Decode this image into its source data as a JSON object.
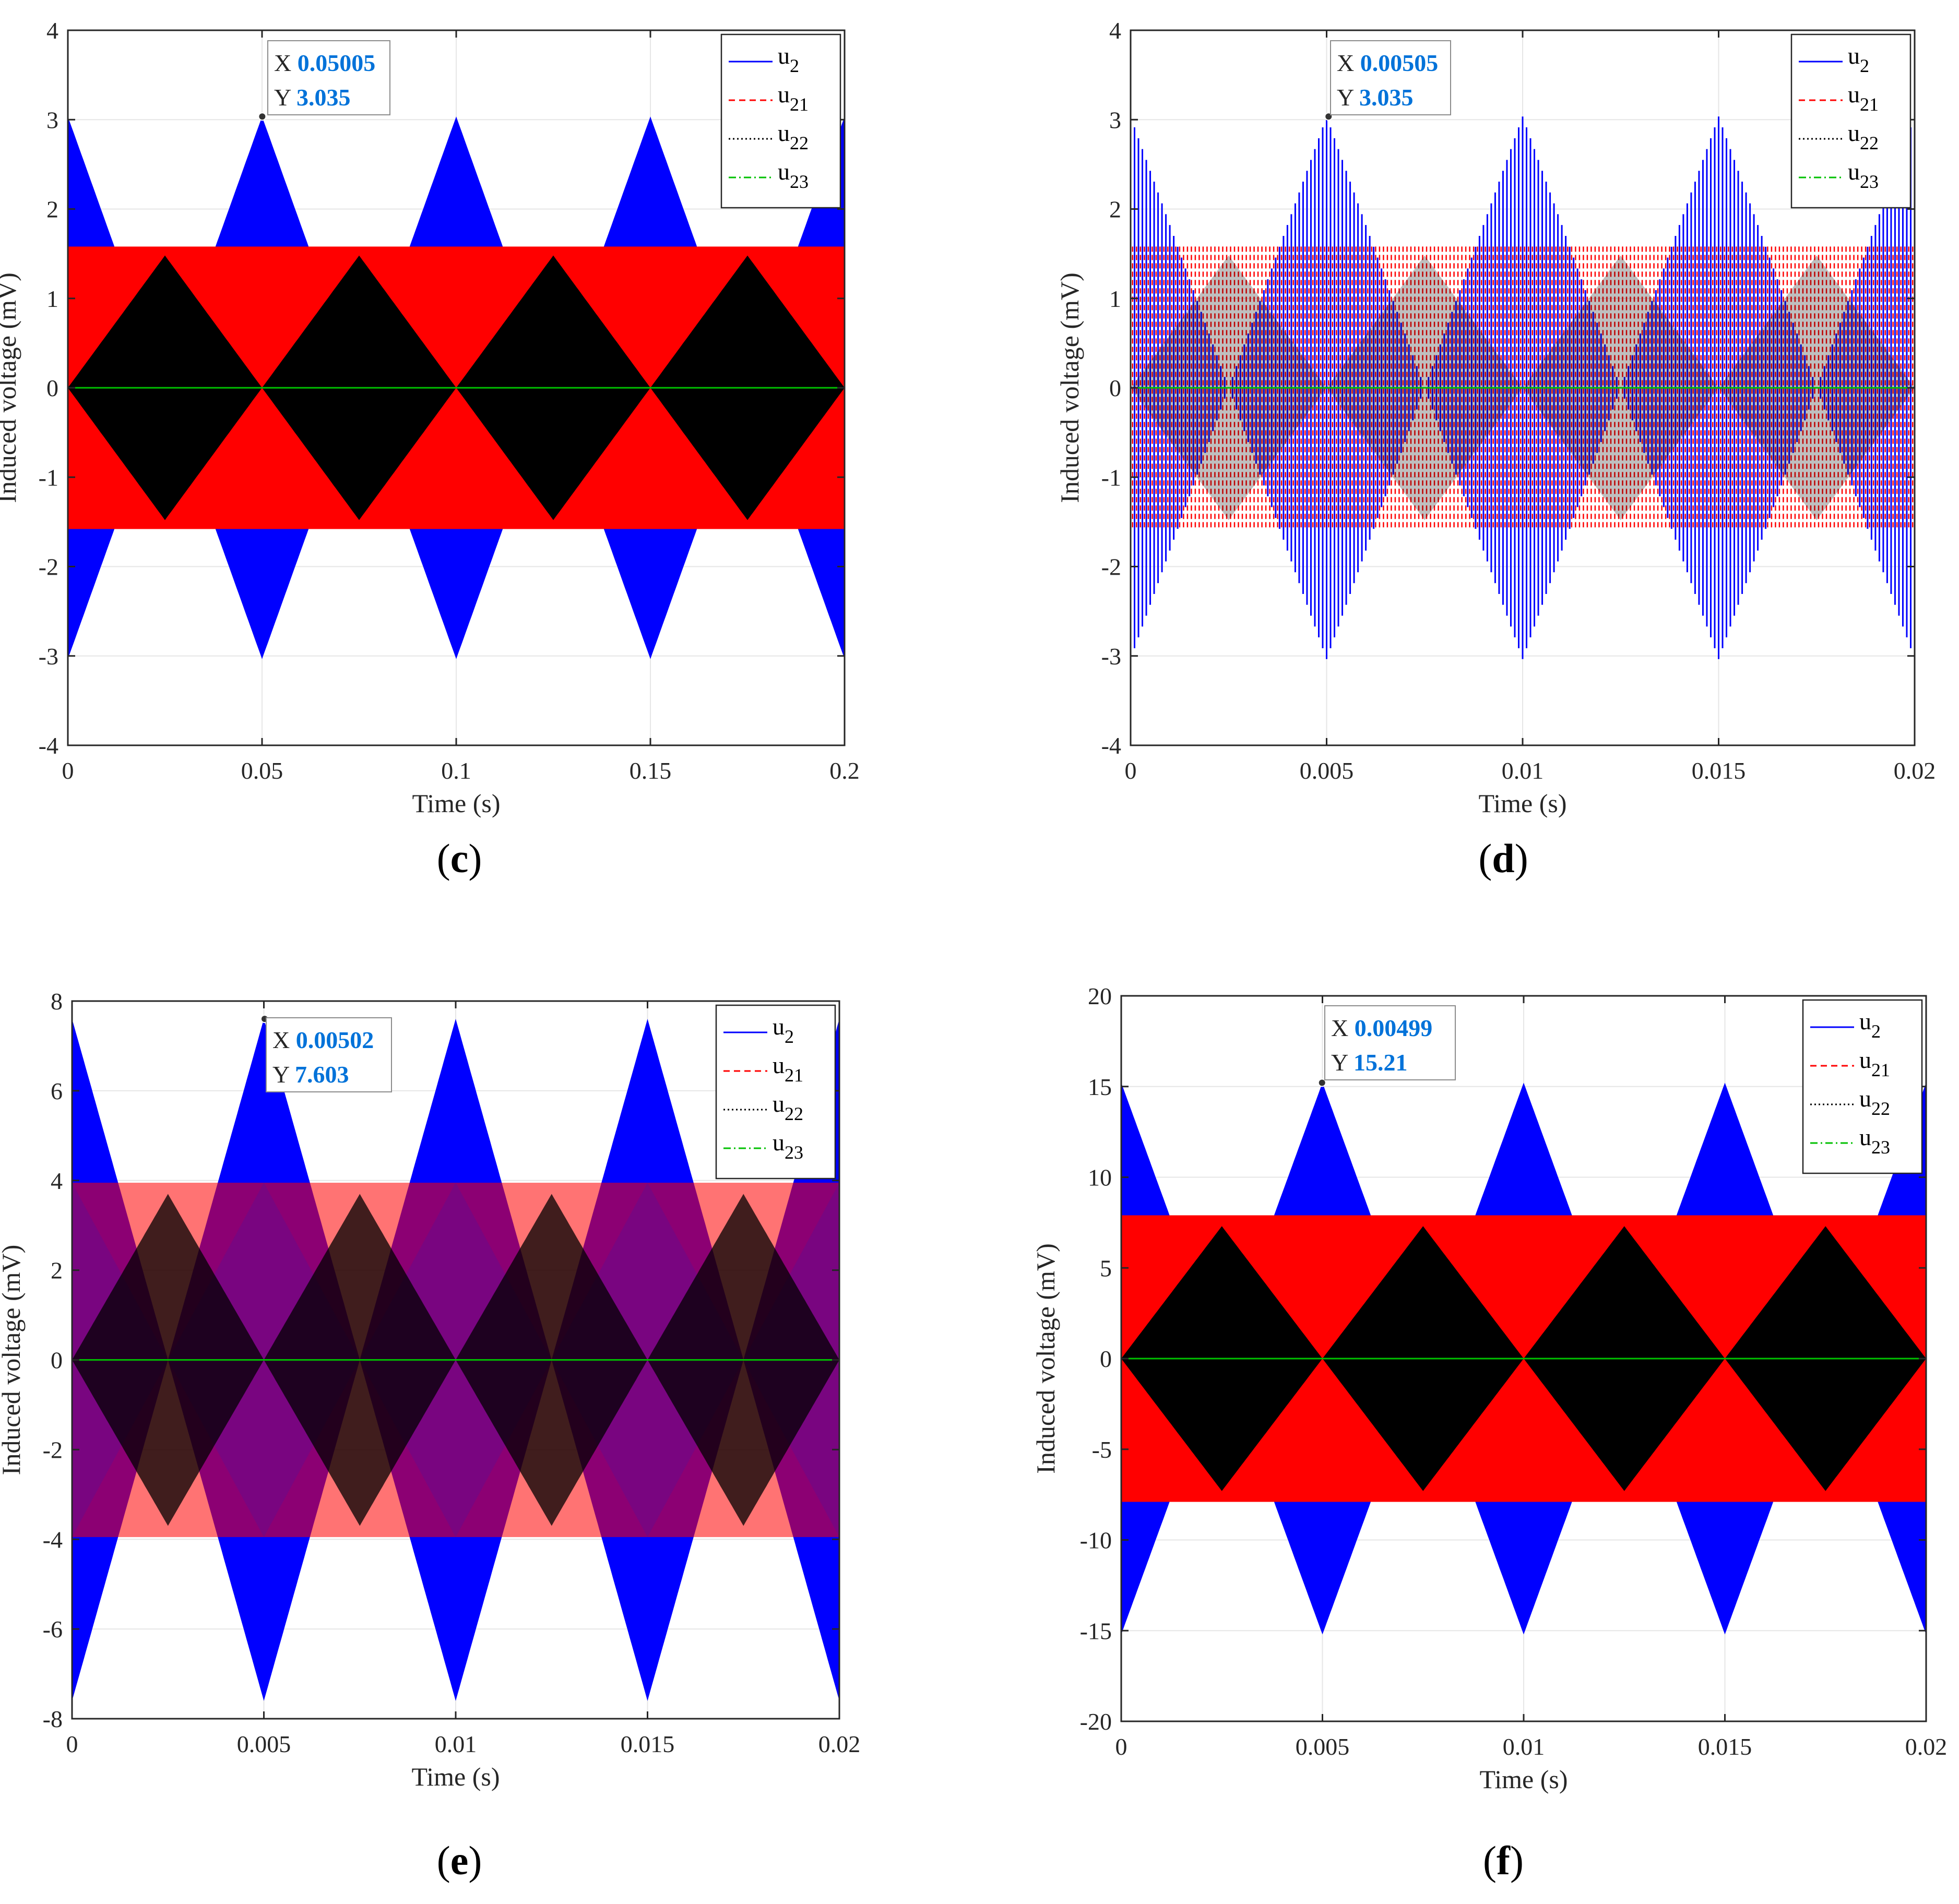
{
  "chart_data": [
    {
      "panel": "c",
      "type": "line",
      "xlabel": "Time (s)",
      "ylabel": "Induced voltage (mV)",
      "xlim": [
        0,
        0.2
      ],
      "ylim": [
        -4,
        4
      ],
      "xticks": [
        0,
        0.05,
        0.1,
        0.15,
        0.2
      ],
      "xtick_labels": [
        "0",
        "0.05",
        "0.1",
        "0.15",
        "0.2"
      ],
      "yticks": [
        -4,
        -3,
        -2,
        -1,
        0,
        1,
        2,
        3,
        4
      ],
      "ytick_labels": [
        "-4",
        "-3",
        "-2",
        "-1",
        "0",
        "1",
        "2",
        "3",
        "4"
      ],
      "grid": true,
      "legend_position": "top-right",
      "render_style": "solid",
      "series": [
        {
          "name": "u2",
          "label_main": "u",
          "label_sub": "2",
          "color": "#0000ff",
          "line_style": "solid",
          "amplitude": 3.035,
          "period": 0.05,
          "phase": 0,
          "shape": "beat"
        },
        {
          "name": "u21",
          "label_main": "u",
          "label_sub": "21",
          "color": "#ff0000",
          "line_style": "dashed",
          "amplitude": 1.58,
          "shape": "band"
        },
        {
          "name": "u22",
          "label_main": "u",
          "label_sub": "22",
          "color": "#000000",
          "line_style": "dotted",
          "amplitude": 1.48,
          "period": 0.05,
          "phase": 0.025,
          "shape": "beat"
        },
        {
          "name": "u23",
          "label_main": "u",
          "label_sub": "23",
          "color": "#00c000",
          "line_style": "dash-dot",
          "amplitude": 0,
          "shape": "flat"
        }
      ],
      "datatip": {
        "x_label": "X",
        "x_value": "0.05005",
        "y_label": "Y",
        "y_value": "3.035",
        "x": 0.05005,
        "y": 3.035
      },
      "caption": {
        "open": "(",
        "letter": "c",
        "close": ")"
      }
    },
    {
      "panel": "d",
      "type": "line",
      "xlabel": "Time (s)",
      "ylabel": "Induced voltage (mV)",
      "xlim": [
        0,
        0.02
      ],
      "ylim": [
        -4,
        4
      ],
      "xticks": [
        0,
        0.005,
        0.01,
        0.015,
        0.02
      ],
      "xtick_labels": [
        "0",
        "0.005",
        "0.01",
        "0.015",
        "0.02"
      ],
      "yticks": [
        -4,
        -3,
        -2,
        -1,
        0,
        1,
        2,
        3,
        4
      ],
      "ytick_labels": [
        "-4",
        "-3",
        "-2",
        "-1",
        "0",
        "1",
        "2",
        "3",
        "4"
      ],
      "grid": true,
      "legend_position": "top-right",
      "render_style": "sparse",
      "series": [
        {
          "name": "u2",
          "label_main": "u",
          "label_sub": "2",
          "color": "#0000ff",
          "line_style": "solid",
          "amplitude": 3.035,
          "period": 0.005,
          "phase": 0,
          "shape": "beat"
        },
        {
          "name": "u21",
          "label_main": "u",
          "label_sub": "21",
          "color": "#ff0000",
          "line_style": "dashed",
          "amplitude": 1.58,
          "shape": "band"
        },
        {
          "name": "u22",
          "label_main": "u",
          "label_sub": "22",
          "color": "#000000",
          "line_style": "dotted",
          "amplitude": 1.48,
          "period": 0.005,
          "phase": 0.0025,
          "shape": "beat"
        },
        {
          "name": "u23",
          "label_main": "u",
          "label_sub": "23",
          "color": "#00c000",
          "line_style": "dash-dot",
          "amplitude": 0,
          "shape": "flat"
        }
      ],
      "datatip": {
        "x_label": "X",
        "x_value": "0.00505",
        "y_label": "Y",
        "y_value": "3.035",
        "x": 0.00505,
        "y": 3.035
      },
      "caption": {
        "open": "(",
        "letter": "d",
        "close": ")"
      }
    },
    {
      "panel": "e",
      "type": "line",
      "xlabel": "Time (s)",
      "ylabel": "Induced voltage (mV)",
      "xlim": [
        0,
        0.02
      ],
      "ylim": [
        -8,
        8
      ],
      "xticks": [
        0,
        0.005,
        0.01,
        0.015,
        0.02
      ],
      "xtick_labels": [
        "0",
        "0.005",
        "0.01",
        "0.015",
        "0.02"
      ],
      "yticks": [
        -8,
        -6,
        -4,
        -2,
        0,
        2,
        4,
        6,
        8
      ],
      "ytick_labels": [
        "-8",
        "-6",
        "-4",
        "-2",
        "0",
        "2",
        "4",
        "6",
        "8"
      ],
      "grid": true,
      "legend_position": "top-right",
      "render_style": "dense",
      "series": [
        {
          "name": "u2",
          "label_main": "u",
          "label_sub": "2",
          "color": "#0000ff",
          "line_style": "solid",
          "amplitude": 7.603,
          "period": 0.005,
          "phase": 0,
          "shape": "beat"
        },
        {
          "name": "u21",
          "label_main": "u",
          "label_sub": "21",
          "color": "#ff0000",
          "line_style": "dashed",
          "amplitude": 3.95,
          "shape": "band"
        },
        {
          "name": "u22",
          "label_main": "u",
          "label_sub": "22",
          "color": "#000000",
          "line_style": "dotted",
          "amplitude": 3.7,
          "period": 0.005,
          "phase": 0.0025,
          "shape": "beat"
        },
        {
          "name": "u23",
          "label_main": "u",
          "label_sub": "23",
          "color": "#00c000",
          "line_style": "dash-dot",
          "amplitude": 0,
          "shape": "flat"
        }
      ],
      "datatip": {
        "x_label": "X",
        "x_value": "0.00502",
        "y_label": "Y",
        "y_value": "7.603",
        "x": 0.00502,
        "y": 7.603
      },
      "caption": {
        "open": "(",
        "letter": "e",
        "close": ")"
      }
    },
    {
      "panel": "f",
      "type": "line",
      "xlabel": "Time (s)",
      "ylabel": "Induced voltage (mV)",
      "xlim": [
        0,
        0.02
      ],
      "ylim": [
        -20,
        20
      ],
      "xticks": [
        0,
        0.005,
        0.01,
        0.015,
        0.02
      ],
      "xtick_labels": [
        "0",
        "0.005",
        "0.01",
        "0.015",
        "0.02"
      ],
      "yticks": [
        -20,
        -15,
        -10,
        -5,
        0,
        5,
        10,
        15,
        20
      ],
      "ytick_labels": [
        "-20",
        "-15",
        "-10",
        "-5",
        "0",
        "5",
        "10",
        "15",
        "20"
      ],
      "grid": true,
      "legend_position": "top-right",
      "render_style": "solid",
      "series": [
        {
          "name": "u2",
          "label_main": "u",
          "label_sub": "2",
          "color": "#0000ff",
          "line_style": "solid",
          "amplitude": 15.21,
          "period": 0.005,
          "phase": 0,
          "shape": "beat"
        },
        {
          "name": "u21",
          "label_main": "u",
          "label_sub": "21",
          "color": "#ff0000",
          "line_style": "dashed",
          "amplitude": 7.9,
          "shape": "band"
        },
        {
          "name": "u22",
          "label_main": "u",
          "label_sub": "22",
          "color": "#000000",
          "line_style": "dotted",
          "amplitude": 7.3,
          "period": 0.005,
          "phase": 0.0025,
          "shape": "beat"
        },
        {
          "name": "u23",
          "label_main": "u",
          "label_sub": "23",
          "color": "#00c000",
          "line_style": "dash-dot",
          "amplitude": 0,
          "shape": "flat"
        }
      ],
      "datatip": {
        "x_label": "X",
        "x_value": "0.00499",
        "y_label": "Y",
        "y_value": "15.21",
        "x": 0.00499,
        "y": 15.21
      },
      "caption": {
        "open": "(",
        "letter": "f",
        "close": ")"
      }
    }
  ]
}
